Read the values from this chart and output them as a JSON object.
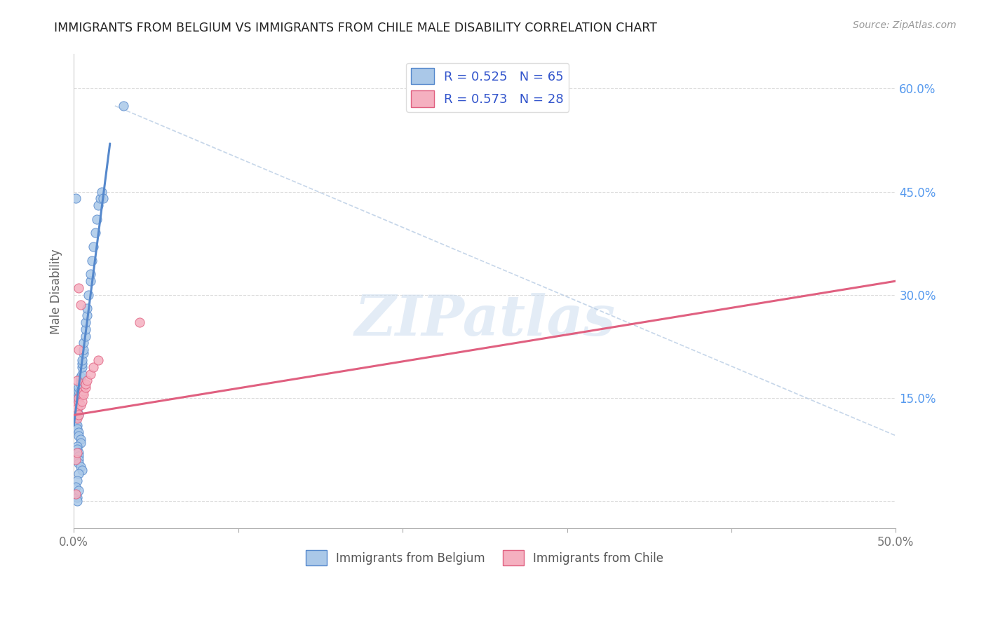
{
  "title": "IMMIGRANTS FROM BELGIUM VS IMMIGRANTS FROM CHILE MALE DISABILITY CORRELATION CHART",
  "source": "Source: ZipAtlas.com",
  "ylabel": "Male Disability",
  "legend_entry1": "R = 0.525   N = 65",
  "legend_entry2": "R = 0.573   N = 28",
  "legend_label1": "Immigrants from Belgium",
  "legend_label2": "Immigrants from Chile",
  "belgium_color": "#aac8e8",
  "chile_color": "#f5b0c0",
  "belgium_line_color": "#5588cc",
  "chile_line_color": "#e06080",
  "diag_line_color": "#b8cce4",
  "background_color": "#ffffff",
  "grid_color": "#d8d8d8",
  "title_color": "#222222",
  "legend_text_color": "#3355cc",
  "right_tick_color": "#5599ee",
  "xlim": [
    0.0,
    0.5
  ],
  "ylim": [
    -0.04,
    0.65
  ],
  "belgium_scatter_x": [
    0.001,
    0.001,
    0.002,
    0.002,
    0.002,
    0.002,
    0.002,
    0.003,
    0.003,
    0.003,
    0.003,
    0.003,
    0.003,
    0.004,
    0.004,
    0.004,
    0.004,
    0.005,
    0.005,
    0.005,
    0.005,
    0.006,
    0.006,
    0.006,
    0.007,
    0.007,
    0.007,
    0.008,
    0.008,
    0.009,
    0.01,
    0.01,
    0.011,
    0.012,
    0.013,
    0.014,
    0.015,
    0.016,
    0.017,
    0.018,
    0.001,
    0.001,
    0.002,
    0.002,
    0.003,
    0.003,
    0.004,
    0.004,
    0.002,
    0.002,
    0.003,
    0.003,
    0.003,
    0.003,
    0.004,
    0.005,
    0.003,
    0.002,
    0.001,
    0.001,
    0.002,
    0.002,
    0.003,
    0.001,
    0.03
  ],
  "belgium_scatter_y": [
    0.135,
    0.13,
    0.135,
    0.14,
    0.145,
    0.15,
    0.13,
    0.14,
    0.15,
    0.155,
    0.16,
    0.165,
    0.125,
    0.16,
    0.17,
    0.175,
    0.18,
    0.185,
    0.195,
    0.2,
    0.205,
    0.215,
    0.22,
    0.23,
    0.24,
    0.25,
    0.26,
    0.27,
    0.28,
    0.3,
    0.32,
    0.33,
    0.35,
    0.37,
    0.39,
    0.41,
    0.43,
    0.44,
    0.45,
    0.44,
    0.12,
    0.115,
    0.11,
    0.105,
    0.1,
    0.095,
    0.09,
    0.085,
    0.08,
    0.075,
    0.07,
    0.065,
    0.06,
    0.055,
    0.05,
    0.045,
    0.04,
    0.03,
    0.02,
    0.01,
    0.005,
    0.0,
    0.015,
    0.44,
    0.575
  ],
  "chile_scatter_x": [
    0.001,
    0.001,
    0.002,
    0.002,
    0.003,
    0.003,
    0.004,
    0.004,
    0.005,
    0.005,
    0.006,
    0.006,
    0.007,
    0.007,
    0.008,
    0.01,
    0.012,
    0.015,
    0.002,
    0.003,
    0.003,
    0.004,
    0.001,
    0.001,
    0.002,
    0.003,
    0.04,
    0.002
  ],
  "chile_scatter_y": [
    0.135,
    0.13,
    0.14,
    0.135,
    0.145,
    0.15,
    0.155,
    0.14,
    0.155,
    0.145,
    0.16,
    0.155,
    0.165,
    0.17,
    0.175,
    0.185,
    0.195,
    0.205,
    0.12,
    0.125,
    0.31,
    0.285,
    0.06,
    0.01,
    0.07,
    0.22,
    0.26,
    0.175
  ],
  "belgium_trend_x": [
    0.0,
    0.022
  ],
  "belgium_trend_y": [
    0.11,
    0.52
  ],
  "chile_trend_x": [
    0.0,
    0.5
  ],
  "chile_trend_y": [
    0.125,
    0.32
  ],
  "diag_line_x": [
    0.025,
    0.5
  ],
  "diag_line_y": [
    0.575,
    0.095
  ],
  "right_yticks": [
    0.0,
    0.15,
    0.3,
    0.45,
    0.6
  ],
  "right_ytick_labels": [
    "",
    "15.0%",
    "30.0%",
    "45.0%",
    "60.0%"
  ],
  "xtick_positions": [
    0.0,
    0.1,
    0.2,
    0.3,
    0.4,
    0.5
  ],
  "xtick_labels": [
    "0.0%",
    "",
    "",
    "",
    "",
    "50.0%"
  ]
}
